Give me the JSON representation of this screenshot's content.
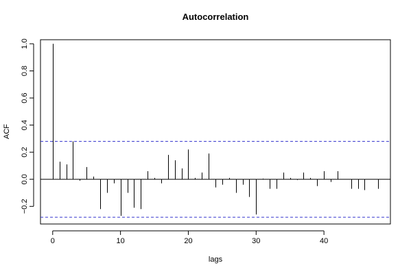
{
  "chart_data": {
    "type": "bar",
    "title": "Autocorrelation",
    "xlabel": "lags",
    "ylabel": "ACF",
    "xlim": [
      -1.8,
      49.8
    ],
    "ylim": [
      -0.33,
      1.03
    ],
    "x_ticks": [
      0,
      10,
      20,
      30,
      40
    ],
    "y_ticks": [
      -0.2,
      0.0,
      0.2,
      0.4,
      0.6,
      0.8,
      1.0
    ],
    "y_tick_labels": [
      "−0.2",
      "0.0",
      "0.2",
      "0.4",
      "0.6",
      "0.8",
      "1.0"
    ],
    "x_tick_labels": [
      "0",
      "10",
      "20",
      "30",
      "40"
    ],
    "zero_line": true,
    "confidence_bounds": [
      0.28,
      -0.28
    ],
    "bound_color": "#3333cc",
    "bar_color": "#000000",
    "lags": [
      0,
      1,
      2,
      3,
      4,
      5,
      6,
      7,
      8,
      9,
      10,
      11,
      12,
      13,
      14,
      15,
      16,
      17,
      18,
      19,
      20,
      21,
      22,
      23,
      24,
      25,
      26,
      27,
      28,
      29,
      30,
      31,
      32,
      33,
      34,
      35,
      36,
      37,
      38,
      39,
      40,
      41,
      42,
      43,
      44,
      45,
      46,
      47,
      48
    ],
    "values": [
      1.0,
      0.13,
      0.11,
      0.28,
      -0.01,
      0.09,
      0.02,
      -0.22,
      -0.1,
      -0.03,
      -0.27,
      -0.1,
      -0.21,
      -0.22,
      0.06,
      0.01,
      -0.03,
      0.18,
      0.14,
      0.08,
      0.22,
      0.01,
      0.05,
      0.19,
      -0.06,
      -0.04,
      0.01,
      -0.1,
      -0.04,
      -0.13,
      -0.26,
      0.005,
      -0.07,
      -0.07,
      0.05,
      0.01,
      -0.005,
      0.05,
      0.01,
      -0.05,
      0.06,
      -0.02,
      0.06,
      0.0,
      -0.07,
      -0.07,
      -0.08,
      0.0,
      -0.07
    ]
  }
}
